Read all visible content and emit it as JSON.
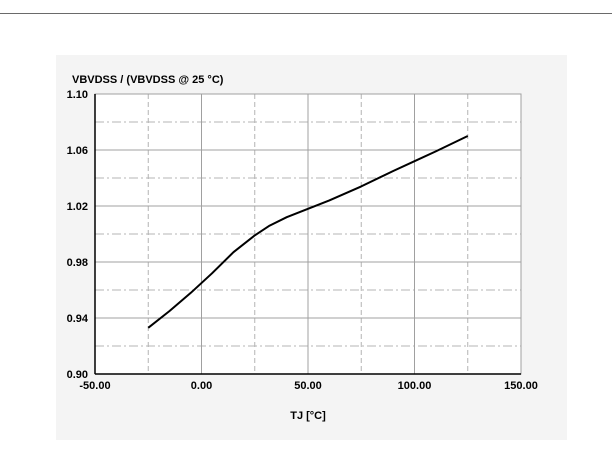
{
  "chart_data": {
    "type": "line",
    "ylabel": "VBVDSS / (VBVDSS @ 25 °C)",
    "xlabel": "TJ [°C]",
    "xlim": [
      -50,
      150
    ],
    "ylim": [
      0.9,
      1.1
    ],
    "xticks": [
      -50,
      0,
      50,
      100,
      150
    ],
    "xtick_labels": [
      "-50.00",
      "0.00",
      "50.00",
      "100.00",
      "150.00"
    ],
    "yticks": [
      0.9,
      0.94,
      0.98,
      1.02,
      1.06,
      1.1
    ],
    "ytick_labels": [
      "0.90",
      "0.94",
      "0.98",
      "1.02",
      "1.06",
      "1.10"
    ],
    "x_minor_grid": [
      -25,
      25,
      75,
      125
    ],
    "y_minor_grid": [
      0.92,
      0.96,
      1.0,
      1.04,
      1.08
    ],
    "grid": true,
    "series": [
      {
        "x": [
          -25,
          -15,
          -5,
          5,
          15,
          25,
          32,
          40,
          50,
          60,
          75,
          90,
          100,
          110,
          125
        ],
        "y": [
          0.933,
          0.945,
          0.958,
          0.972,
          0.987,
          0.999,
          1.006,
          1.012,
          1.018,
          1.024,
          1.034,
          1.045,
          1.052,
          1.059,
          1.07
        ]
      }
    ],
    "colors": {
      "line": "#000000",
      "grid_major": "#a0a0a0",
      "grid_minor": "#b4b4b4",
      "plot_bg": "#ffffff",
      "frame_bg": "#f4f4f4",
      "axis": "#000000"
    }
  }
}
